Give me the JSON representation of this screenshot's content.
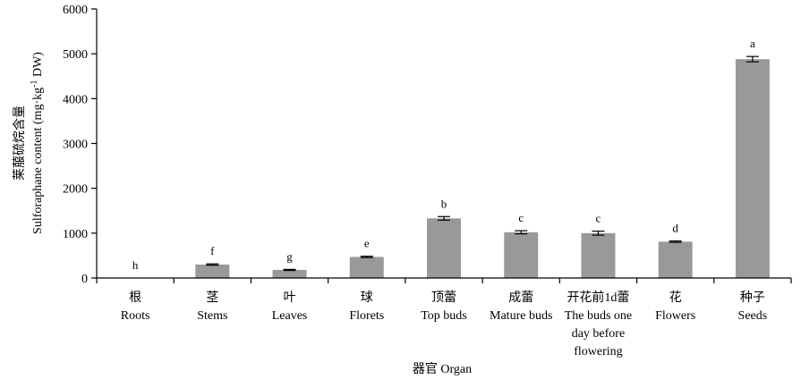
{
  "chart_data": {
    "type": "bar",
    "categories": [
      {
        "cn": "根",
        "en": [
          "Roots"
        ]
      },
      {
        "cn": "茎",
        "en": [
          "Stems"
        ]
      },
      {
        "cn": "叶",
        "en": [
          "Leaves"
        ]
      },
      {
        "cn": "球",
        "en": [
          "Florets"
        ]
      },
      {
        "cn": "顶蕾",
        "en": [
          "Top buds"
        ]
      },
      {
        "cn": "成蕾",
        "en": [
          "Mature buds"
        ]
      },
      {
        "cn": "开花前1d蕾",
        "en": [
          "The buds one",
          "day before",
          "flowering"
        ]
      },
      {
        "cn": "花",
        "en": [
          "Flowers"
        ]
      },
      {
        "cn": "种子",
        "en": [
          "Seeds"
        ]
      }
    ],
    "values": [
      0,
      300,
      180,
      470,
      1330,
      1020,
      1000,
      810,
      4880
    ],
    "errors": [
      0,
      15,
      12,
      15,
      40,
      35,
      45,
      15,
      60
    ],
    "significance": [
      "h",
      "f",
      "g",
      "e",
      "b",
      "c",
      "c",
      "d",
      "a"
    ],
    "ylabel_cn": "莱菔硫烷含量",
    "ylabel_en_main": "Sulforaphane content (mg·kg",
    "ylabel_en_sup": "-1",
    "ylabel_en_end": " DW)",
    "xlabel": "器官 Organ",
    "ylim": [
      0,
      6000
    ],
    "yticks": [
      0,
      1000,
      2000,
      3000,
      4000,
      5000,
      6000
    ],
    "bar_color": "#999999"
  }
}
